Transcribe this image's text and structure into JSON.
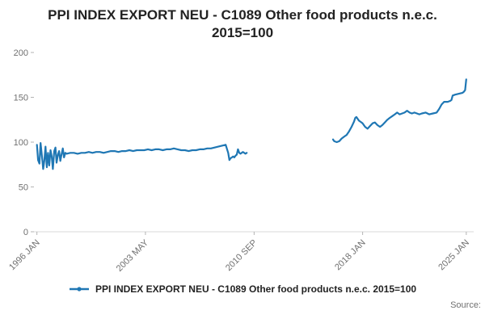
{
  "footer": {
    "source_label": "Source:"
  },
  "colors": {
    "line": "#1f77b4",
    "axis_line": "#d9d9d9",
    "tick_mark": "#b3b3b3",
    "tick_text": "#707070",
    "title_text": "#222222"
  },
  "chart_data": {
    "type": "line",
    "title": "PPI INDEX EXPORT NEU - C1089 Other food products n.e.c. 2015=100",
    "xlabel": "",
    "ylabel": "",
    "xlim": [
      1995.8,
      2025.5
    ],
    "ylim": [
      0,
      200
    ],
    "grid": false,
    "legend_position": "bottom",
    "y_ticks": [
      0,
      50,
      100,
      150,
      200
    ],
    "x_ticks": [
      {
        "value": 1996.0,
        "label": "1996 JAN"
      },
      {
        "value": 2003.33,
        "label": "2003 MAY"
      },
      {
        "value": 2010.67,
        "label": "2010 SEP"
      },
      {
        "value": 2018.0,
        "label": "2018 JAN"
      },
      {
        "value": 2025.0,
        "label": "2025 JAN"
      }
    ],
    "series": [
      {
        "name": "PPI INDEX EXPORT NEU - C1089 Other food products n.e.c. 2015=100",
        "color": "#1f77b4",
        "points": [
          [
            1996.0,
            97
          ],
          [
            1996.08,
            80
          ],
          [
            1996.17,
            76
          ],
          [
            1996.25,
            99
          ],
          [
            1996.33,
            86
          ],
          [
            1996.42,
            70
          ],
          [
            1996.5,
            79
          ],
          [
            1996.58,
            95
          ],
          [
            1996.67,
            72
          ],
          [
            1996.75,
            88
          ],
          [
            1996.83,
            74
          ],
          [
            1996.92,
            91
          ],
          [
            1997.0,
            84
          ],
          [
            1997.08,
            70
          ],
          [
            1997.17,
            90
          ],
          [
            1997.25,
            94
          ],
          [
            1997.33,
            77
          ],
          [
            1997.42,
            86
          ],
          [
            1997.5,
            90
          ],
          [
            1997.58,
            79
          ],
          [
            1997.67,
            87
          ],
          [
            1997.75,
            93
          ],
          [
            1997.83,
            83
          ],
          [
            1997.92,
            88
          ],
          [
            1998.0,
            87
          ],
          [
            1998.25,
            88
          ],
          [
            1998.5,
            88
          ],
          [
            1998.75,
            87
          ],
          [
            1999.0,
            88
          ],
          [
            1999.25,
            88
          ],
          [
            1999.5,
            89
          ],
          [
            1999.75,
            88
          ],
          [
            2000.0,
            89
          ],
          [
            2000.25,
            89
          ],
          [
            2000.5,
            88
          ],
          [
            2000.75,
            89
          ],
          [
            2001.0,
            90
          ],
          [
            2001.25,
            90
          ],
          [
            2001.5,
            89
          ],
          [
            2001.75,
            90
          ],
          [
            2002.0,
            90
          ],
          [
            2002.25,
            91
          ],
          [
            2002.5,
            90
          ],
          [
            2002.75,
            91
          ],
          [
            2003.0,
            91
          ],
          [
            2003.25,
            91
          ],
          [
            2003.5,
            92
          ],
          [
            2003.75,
            91
          ],
          [
            2004.0,
            92
          ],
          [
            2004.25,
            92
          ],
          [
            2004.5,
            91
          ],
          [
            2004.75,
            92
          ],
          [
            2005.0,
            92
          ],
          [
            2005.25,
            93
          ],
          [
            2005.5,
            92
          ],
          [
            2005.75,
            91
          ],
          [
            2006.0,
            91
          ],
          [
            2006.25,
            90
          ],
          [
            2006.5,
            91
          ],
          [
            2006.75,
            91
          ],
          [
            2007.0,
            92
          ],
          [
            2007.25,
            92
          ],
          [
            2007.5,
            93
          ],
          [
            2007.75,
            93
          ],
          [
            2008.0,
            94
          ],
          [
            2008.25,
            95
          ],
          [
            2008.5,
            96
          ],
          [
            2008.75,
            97
          ],
          [
            2008.92,
            88
          ],
          [
            2009.0,
            80
          ],
          [
            2009.08,
            82
          ],
          [
            2009.17,
            83
          ],
          [
            2009.25,
            84
          ],
          [
            2009.33,
            83
          ],
          [
            2009.42,
            85
          ],
          [
            2009.5,
            86
          ],
          [
            2009.58,
            92
          ],
          [
            2009.67,
            88
          ],
          [
            2009.75,
            87
          ],
          [
            2009.83,
            88
          ],
          [
            2009.92,
            89
          ],
          [
            2010.0,
            88
          ],
          [
            2010.08,
            87
          ],
          [
            2010.17,
            88
          ],
          [
            2010.3,
            null
          ],
          [
            2016.0,
            103
          ],
          [
            2016.08,
            101
          ],
          [
            2016.25,
            100
          ],
          [
            2016.42,
            101
          ],
          [
            2016.58,
            104
          ],
          [
            2016.75,
            106
          ],
          [
            2016.92,
            108
          ],
          [
            2017.08,
            112
          ],
          [
            2017.25,
            117
          ],
          [
            2017.42,
            123
          ],
          [
            2017.5,
            127
          ],
          [
            2017.58,
            128
          ],
          [
            2017.75,
            124
          ],
          [
            2017.92,
            122
          ],
          [
            2018.0,
            121
          ],
          [
            2018.17,
            117
          ],
          [
            2018.33,
            115
          ],
          [
            2018.5,
            118
          ],
          [
            2018.67,
            121
          ],
          [
            2018.83,
            122
          ],
          [
            2019.0,
            119
          ],
          [
            2019.17,
            117
          ],
          [
            2019.33,
            119
          ],
          [
            2019.5,
            122
          ],
          [
            2019.67,
            125
          ],
          [
            2019.83,
            127
          ],
          [
            2020.0,
            129
          ],
          [
            2020.17,
            131
          ],
          [
            2020.33,
            133
          ],
          [
            2020.5,
            131
          ],
          [
            2020.67,
            132
          ],
          [
            2020.83,
            133
          ],
          [
            2021.0,
            135
          ],
          [
            2021.17,
            133
          ],
          [
            2021.33,
            132
          ],
          [
            2021.5,
            133
          ],
          [
            2021.67,
            132
          ],
          [
            2021.83,
            131
          ],
          [
            2022.0,
            132
          ],
          [
            2022.25,
            133
          ],
          [
            2022.5,
            131
          ],
          [
            2022.75,
            132
          ],
          [
            2023.0,
            133
          ],
          [
            2023.17,
            137
          ],
          [
            2023.33,
            142
          ],
          [
            2023.5,
            145
          ],
          [
            2023.75,
            145
          ],
          [
            2023.92,
            146
          ],
          [
            2024.0,
            147
          ],
          [
            2024.08,
            152
          ],
          [
            2024.25,
            153
          ],
          [
            2024.5,
            154
          ],
          [
            2024.75,
            155
          ],
          [
            2024.83,
            156
          ],
          [
            2024.92,
            158
          ],
          [
            2025.0,
            170
          ]
        ]
      }
    ]
  }
}
